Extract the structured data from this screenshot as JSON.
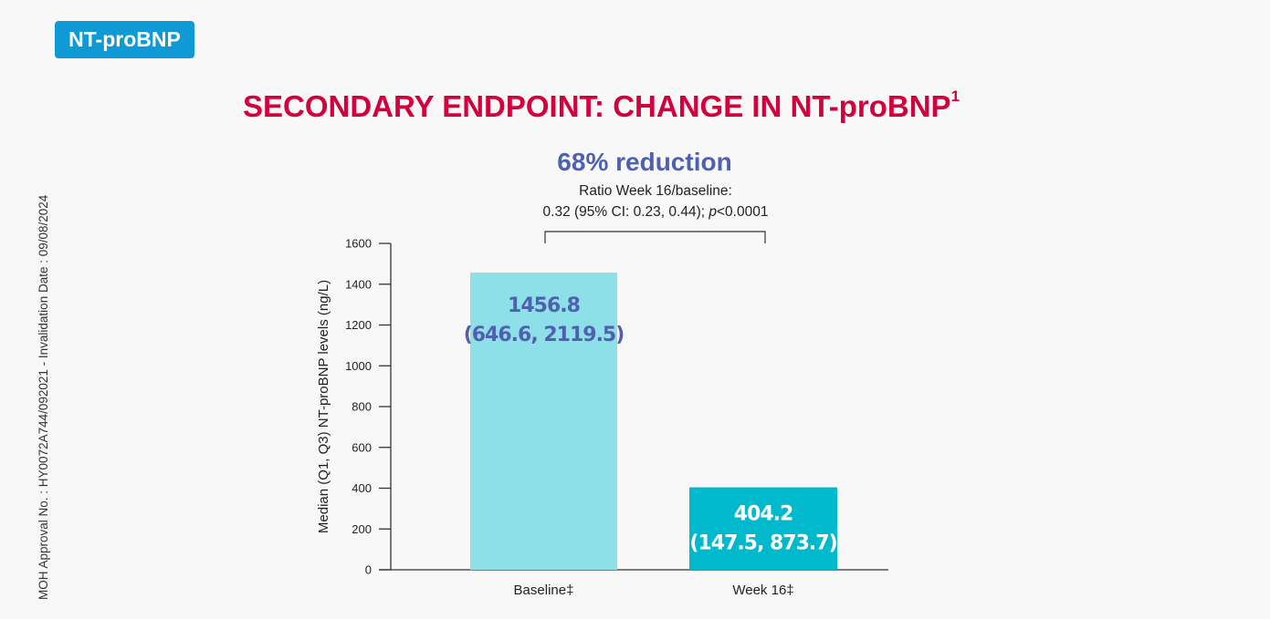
{
  "badge": "NT-proBNP",
  "side_note": "MOH Approval No. : HY0072A744/092021 - Invalidation Date : 09/08/2024",
  "title": "SECONDARY ENDPOINT: CHANGE IN NT-proBNP",
  "title_sup": "1",
  "annotation": {
    "headline": "68% reduction",
    "line1": "Ratio Week 16/baseline:",
    "line2_pre": "0.32 (95% CI: 0.23, 0.44); ",
    "line2_p": "p",
    "line2_post": "<0.0001"
  },
  "colors": {
    "baseline": "#8ddfe8",
    "week16": "#00b9cc",
    "title": "#d2003c",
    "headline": "#5060b0"
  },
  "chart_data": {
    "type": "bar",
    "title": "SECONDARY ENDPOINT: CHANGE IN NT-proBNP",
    "xlabel": "",
    "ylabel": "Median (Q1, Q3) NT-proBNP levels (ng/L)",
    "ylim": [
      0,
      1600
    ],
    "yticks": [
      "0",
      "200",
      "400",
      "600",
      "800",
      "1000",
      "1200",
      "1400",
      "1600"
    ],
    "categories": [
      "Baseline‡",
      "Week 16‡"
    ],
    "values": [
      1456.8,
      404.2
    ],
    "labels": [
      {
        "value": "1456.8",
        "iqr": "(646.6, 2119.5)"
      },
      {
        "value": "404.2",
        "iqr": "(147.5, 873.7)"
      }
    ],
    "grid": false
  }
}
